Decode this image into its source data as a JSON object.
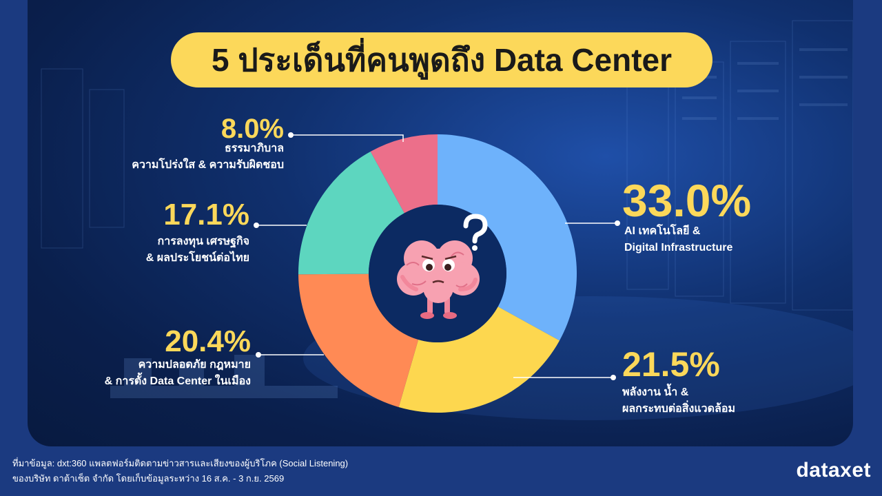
{
  "title": "5 ประเด็นที่คนพูดถึง Data Center",
  "chart_data": {
    "type": "pie",
    "title": "5 ประเด็นที่คนพูดถึง Data Center",
    "slices": [
      {
        "value": 33.0,
        "percent_label": "33.0%",
        "label_lines": [
          "AI เทคโนโลยี &",
          "Digital Infrastructure"
        ],
        "color": "#6eb2fb"
      },
      {
        "value": 21.5,
        "percent_label": "21.5%",
        "label_lines": [
          "พลังงาน น้ำ &",
          "ผลกระทบต่อสิ่งแวดล้อม"
        ],
        "color": "#fdd74f"
      },
      {
        "value": 20.4,
        "percent_label": "20.4%",
        "label_lines": [
          "ความปลอดภัย กฎหมาย",
          "& การตั้ง Data Center ในเมือง"
        ],
        "color": "#ff8a55"
      },
      {
        "value": 17.1,
        "percent_label": "17.1%",
        "label_lines": [
          "การลงทุน เศรษฐกิจ",
          "& ผลประโยชน์ต่อไทย"
        ],
        "color": "#5dd6bf"
      },
      {
        "value": 8.0,
        "percent_label": "8.0%",
        "label_lines": [
          "ธรรมาภิบาล",
          "ความโปร่งใส & ความรับผิดชอบ"
        ],
        "color": "#ec6f8a"
      }
    ]
  },
  "footer": {
    "line1": "ที่มาข้อมูล: dxt:360 แพลตฟอร์มติดตามข่าวสารและเสียงของผู้บริโภค (Social Listening)",
    "line2": "ของบริษัท ดาต้าเซ็ต จำกัด โดยเก็บข้อมูลระหว่าง 16 ส.ค. - 3 ก.ย. 2569"
  },
  "logo": "dataxet",
  "colors": {
    "accent": "#fcd85a",
    "background": "#1b3a80"
  }
}
